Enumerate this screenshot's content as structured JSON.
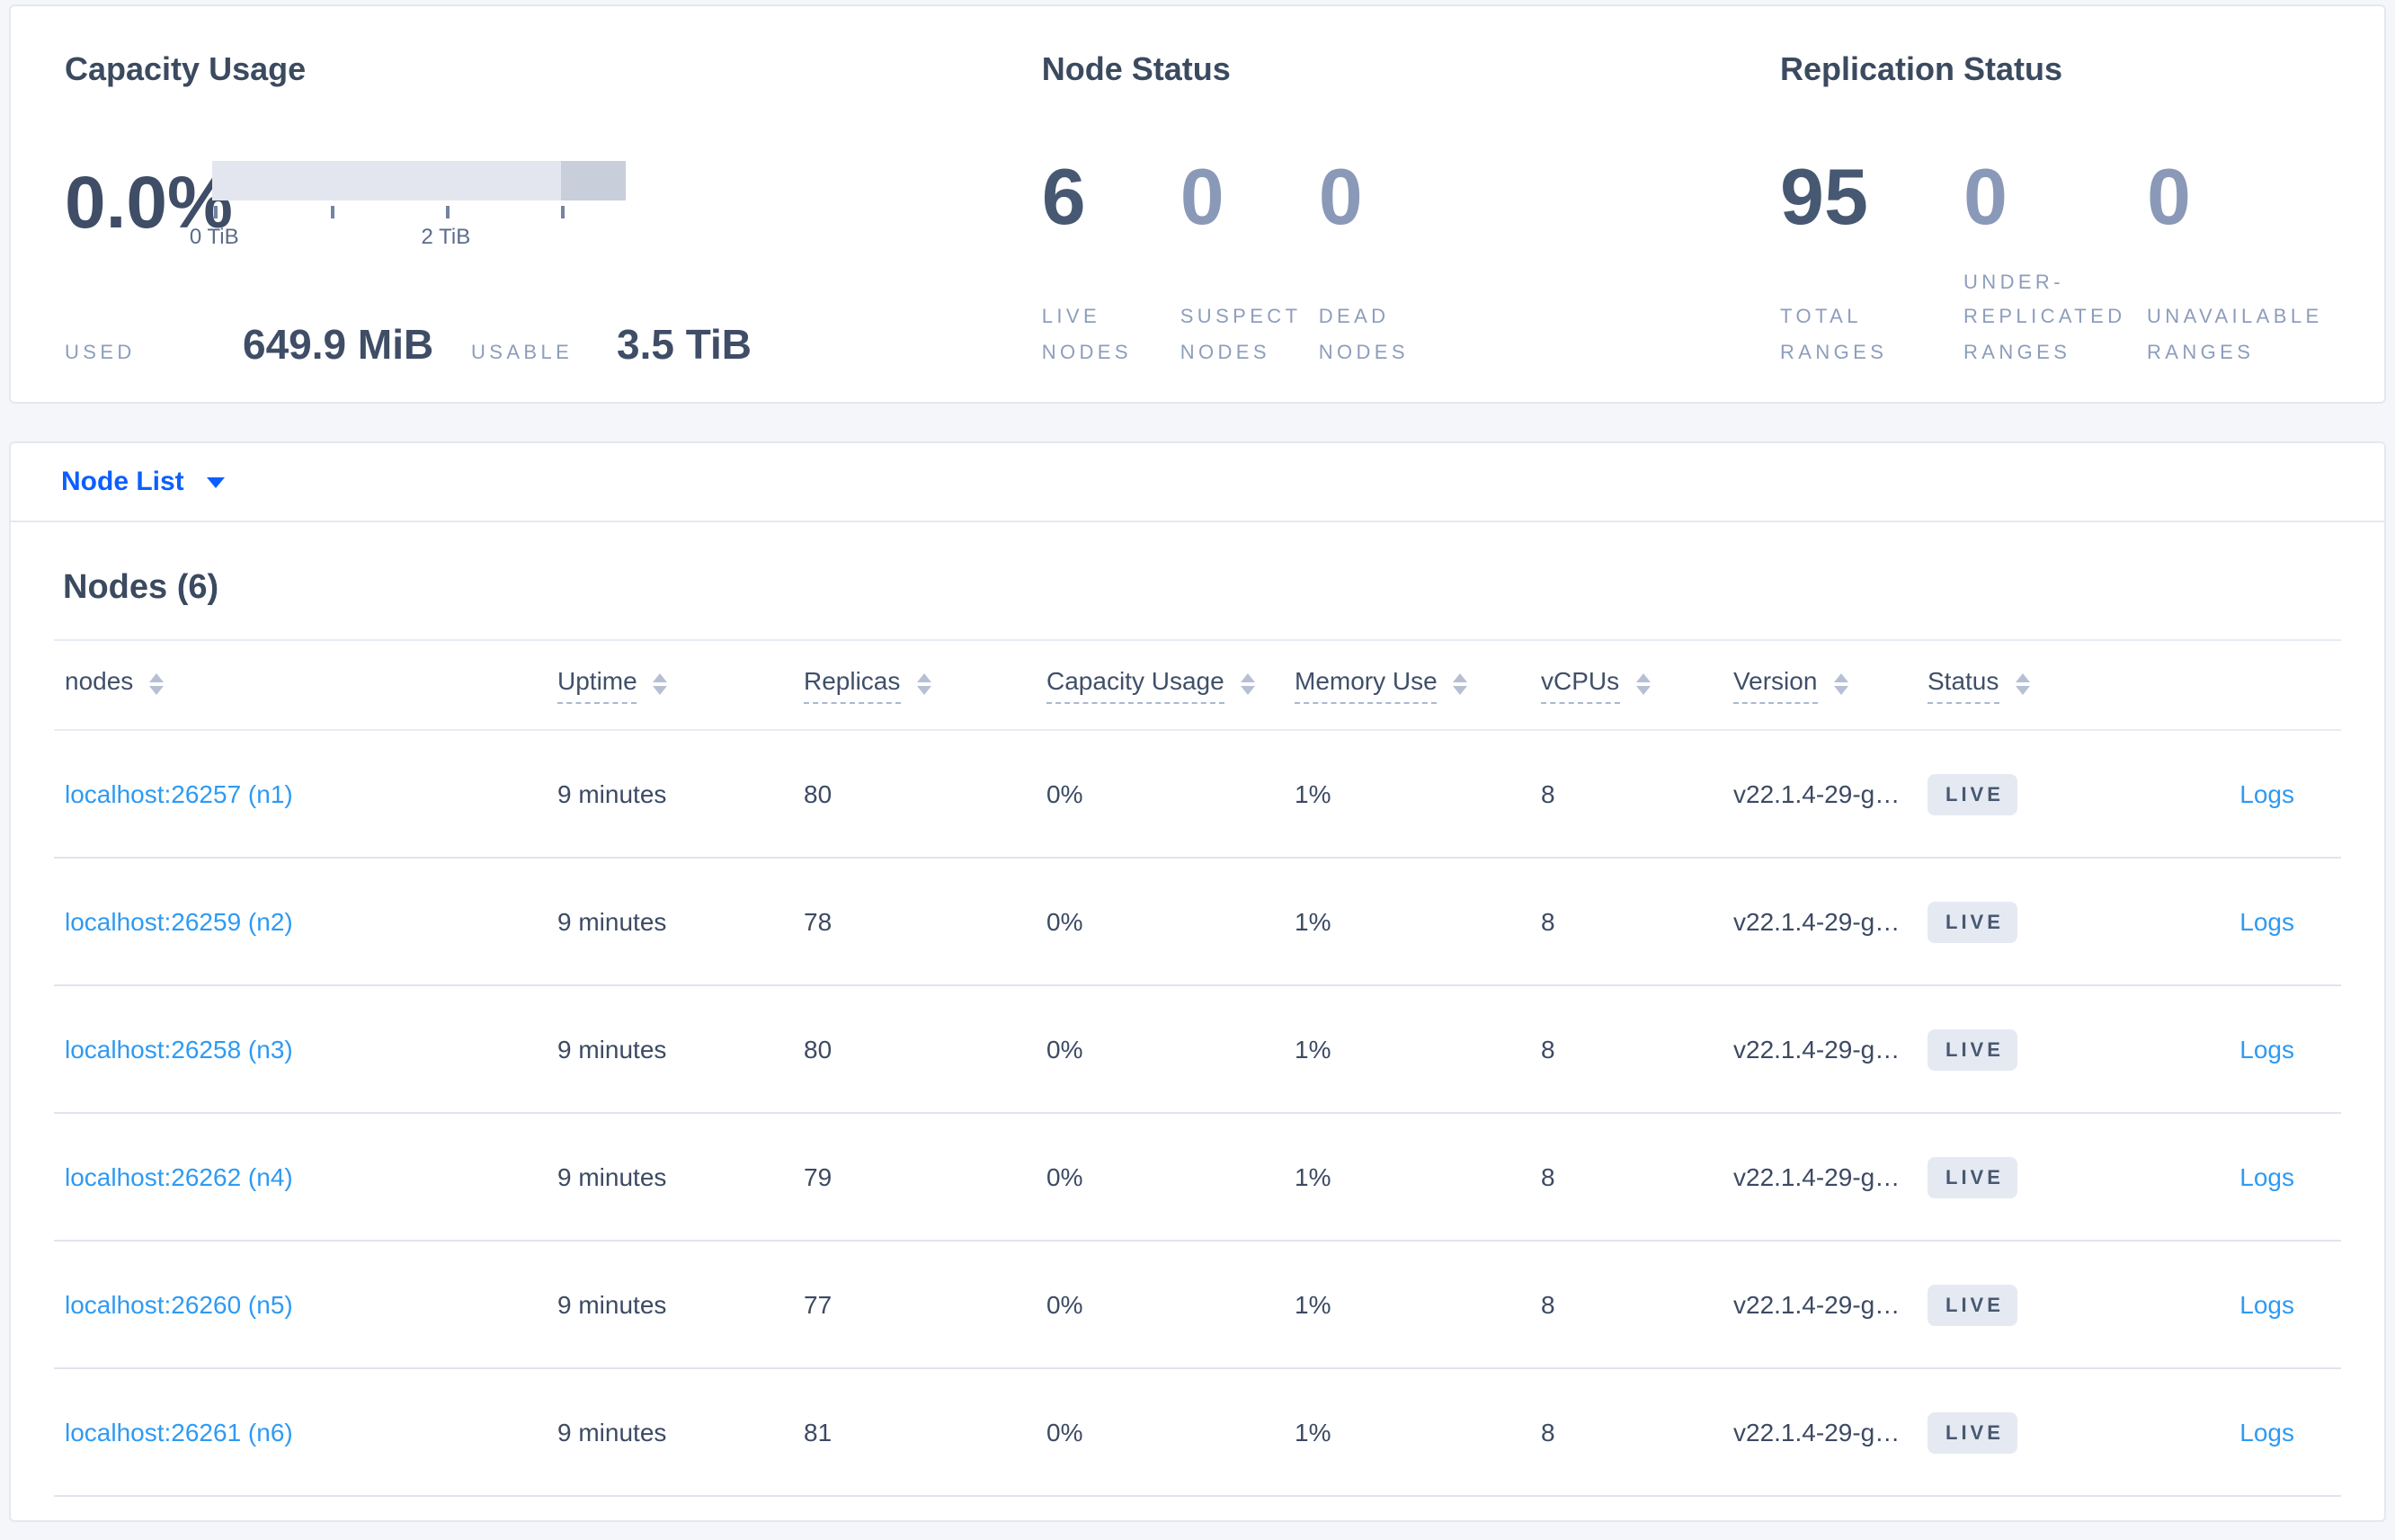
{
  "colors": {
    "page_background": "#f4f6fa",
    "card_border": "#e4e8f0",
    "heading_text": "#3b4a5f",
    "value_dark": "#475872",
    "value_muted": "#8b99b8",
    "label_muted": "#8d9dbb",
    "accent_blue": "#0b5fff",
    "link_blue": "#2e9af3",
    "badge_background": "#e5e9f2",
    "bar_light": "#e4e6ef",
    "bar_dark": "#c9cedb",
    "row_divider": "#e0e4ee"
  },
  "summary": {
    "capacity": {
      "title": "Capacity Usage",
      "percent": "0.0%",
      "bar": {
        "dark_start_pct": 84.4,
        "ticks": [
          {
            "pct": 0.5,
            "label": "0 TiB"
          },
          {
            "pct": 28.5,
            "label": ""
          },
          {
            "pct": 56.5,
            "label": "2 TiB"
          },
          {
            "pct": 84.4,
            "label": ""
          }
        ]
      },
      "used_label": "USED",
      "used_value": "649.9 MiB",
      "usable_label": "USABLE",
      "usable_value": "3.5 TiB"
    },
    "node_status": {
      "title": "Node Status",
      "metrics": [
        {
          "value": "6",
          "label": "LIVE NODES",
          "emphasis": true
        },
        {
          "value": "0",
          "label": "SUSPECT NODES",
          "emphasis": false
        },
        {
          "value": "0",
          "label": "DEAD NODES",
          "emphasis": false
        }
      ]
    },
    "replication": {
      "title": "Replication Status",
      "metrics": [
        {
          "value": "95",
          "label": "TOTAL RANGES",
          "emphasis": true
        },
        {
          "value": "0",
          "label": "UNDER-REPLICATED RANGES",
          "emphasis": false
        },
        {
          "value": "0",
          "label": "UNAVAILABLE RANGES",
          "emphasis": false
        }
      ]
    }
  },
  "view_selector": {
    "label": "Node List"
  },
  "nodes_section": {
    "title": "Nodes (6)",
    "columns": [
      {
        "key": "address",
        "label": "nodes",
        "sortable": true,
        "tooltip": false
      },
      {
        "key": "uptime",
        "label": "Uptime",
        "sortable": true,
        "tooltip": true
      },
      {
        "key": "replicas",
        "label": "Replicas",
        "sortable": true,
        "tooltip": true
      },
      {
        "key": "capacity_usage",
        "label": "Capacity Usage",
        "sortable": true,
        "tooltip": true
      },
      {
        "key": "memory_use",
        "label": "Memory Use",
        "sortable": true,
        "tooltip": true
      },
      {
        "key": "vcpus",
        "label": "vCPUs",
        "sortable": true,
        "tooltip": true
      },
      {
        "key": "version",
        "label": "Version",
        "sortable": true,
        "tooltip": true
      },
      {
        "key": "status",
        "label": "Status",
        "sortable": true,
        "tooltip": true
      },
      {
        "key": "logs",
        "label": "",
        "sortable": false,
        "tooltip": false
      }
    ],
    "rows": [
      {
        "address": "localhost:26257 (n1)",
        "uptime": "9 minutes",
        "replicas": "80",
        "capacity_usage": "0%",
        "memory_use": "1%",
        "vcpus": "8",
        "version": "v22.1.4-29-g…",
        "status": "LIVE",
        "logs": "Logs"
      },
      {
        "address": "localhost:26259 (n2)",
        "uptime": "9 minutes",
        "replicas": "78",
        "capacity_usage": "0%",
        "memory_use": "1%",
        "vcpus": "8",
        "version": "v22.1.4-29-g…",
        "status": "LIVE",
        "logs": "Logs"
      },
      {
        "address": "localhost:26258 (n3)",
        "uptime": "9 minutes",
        "replicas": "80",
        "capacity_usage": "0%",
        "memory_use": "1%",
        "vcpus": "8",
        "version": "v22.1.4-29-g…",
        "status": "LIVE",
        "logs": "Logs"
      },
      {
        "address": "localhost:26262 (n4)",
        "uptime": "9 minutes",
        "replicas": "79",
        "capacity_usage": "0%",
        "memory_use": "1%",
        "vcpus": "8",
        "version": "v22.1.4-29-g…",
        "status": "LIVE",
        "logs": "Logs"
      },
      {
        "address": "localhost:26260 (n5)",
        "uptime": "9 minutes",
        "replicas": "77",
        "capacity_usage": "0%",
        "memory_use": "1%",
        "vcpus": "8",
        "version": "v22.1.4-29-g…",
        "status": "LIVE",
        "logs": "Logs"
      },
      {
        "address": "localhost:26261 (n6)",
        "uptime": "9 minutes",
        "replicas": "81",
        "capacity_usage": "0%",
        "memory_use": "1%",
        "vcpus": "8",
        "version": "v22.1.4-29-g…",
        "status": "LIVE",
        "logs": "Logs"
      }
    ]
  }
}
